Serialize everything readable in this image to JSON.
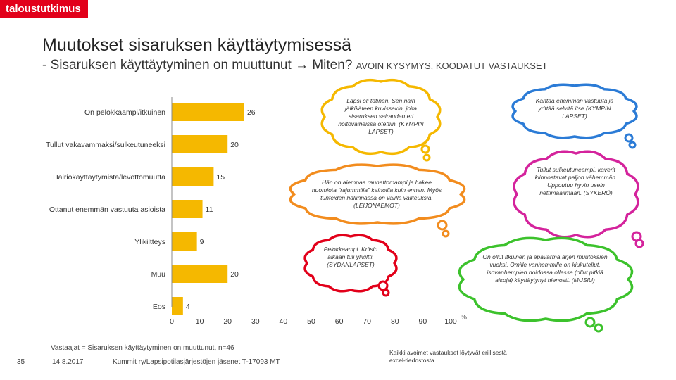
{
  "brand": "taloustutkimus",
  "title": "Muutokset sisaruksen käyttäytymisessä",
  "subtitle": {
    "main": "- Sisaruksen käyttäytyminen on muuttunut",
    "arrow": "→",
    "rest": "Miten?",
    "small": "AVOIN KYSYMYS, KOODATUT VASTAUKSET"
  },
  "chart_data": {
    "type": "bar",
    "orientation": "horizontal",
    "categories": [
      "On pelokkaampi/itkuinen",
      "Tullut vakavammaksi/sulkeutuneeksi",
      "Häiriökäyttäytymistä/levottomuutta",
      "Ottanut enemmän vastuuta asioista",
      "Ylikiltteys",
      "Muu",
      "Eos"
    ],
    "values": [
      26,
      20,
      15,
      11,
      9,
      20,
      4
    ],
    "xlim": [
      0,
      100
    ],
    "xticks": [
      "0",
      "10",
      "20",
      "30",
      "40",
      "50",
      "60",
      "70",
      "80",
      "90",
      "100"
    ],
    "unit": "%",
    "bar_color": "#f5b800"
  },
  "clouds": [
    {
      "id": "kympin",
      "text": "Lapsi oli totinen. Sen näin jälkikäteen kuvissakin, joita sisaruksen sairauden eri hoitovaiheissa otettiin. (KYMPIN LAPSET)",
      "color": "#f5b800"
    },
    {
      "id": "kantaa",
      "text": "Kantaa enemmän vastuuta ja yrittää selvitä itse (KYMPIN LAPSET)",
      "color": "#2b7bd6"
    },
    {
      "id": "leijonaemot",
      "text": "Hän on aiempaa rauhattomampi ja hakee huomiota \"rajummilla\" keinoilla kuin ennen. Myös tunteiden hallinnassa on välillä vaikeuksia. (LEIJONAEMOT)",
      "color": "#f28c1e"
    },
    {
      "id": "sykero",
      "text": "Tullut sulkeutuneempi, kaverit kiinnostavat paljon vähemmän. Uppoutuu hyvin usein nettimaailmaan. (SYKERÖ)",
      "color": "#d4239c"
    },
    {
      "id": "sydanlapset",
      "text": "Pelokkaampi. Kriisin aikaan tuli ylikiltti. (SYDÄNLAPSET)",
      "color": "#e2001a"
    },
    {
      "id": "musiu",
      "text": "On ollut itkuinen ja epävarma arjen muutoksien vuoksi. Omille vanhemmille on kiukutellut, isovanhempien hoidossa ollessa (ollut pitkiä aikoja) käyttäytynyt hienosti. (MUSIU)",
      "color": "#3cc22c"
    }
  ],
  "respondents": "Vastaajat = Sisaruksen käyttäytyminen on muuttunut, n=46",
  "note": "Kaikki avoimet vastaukset löytyvät erillisestä excel-tiedostosta",
  "footer": {
    "page": "35",
    "date": "14.8.2017",
    "source": "Kummit ry/Lapsipotilasjärjestöjen jäsenet T-17093 MT"
  }
}
